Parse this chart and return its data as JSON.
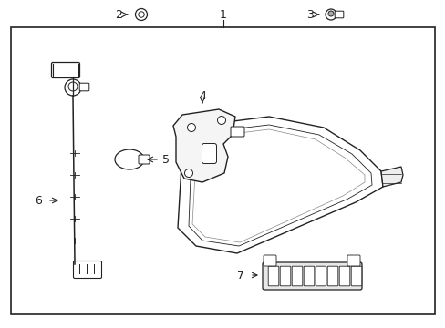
{
  "background_color": "#ffffff",
  "ec": "#222222",
  "figsize": [
    4.89,
    3.6
  ],
  "dpi": 100,
  "border": [
    12,
    30,
    465,
    315
  ]
}
